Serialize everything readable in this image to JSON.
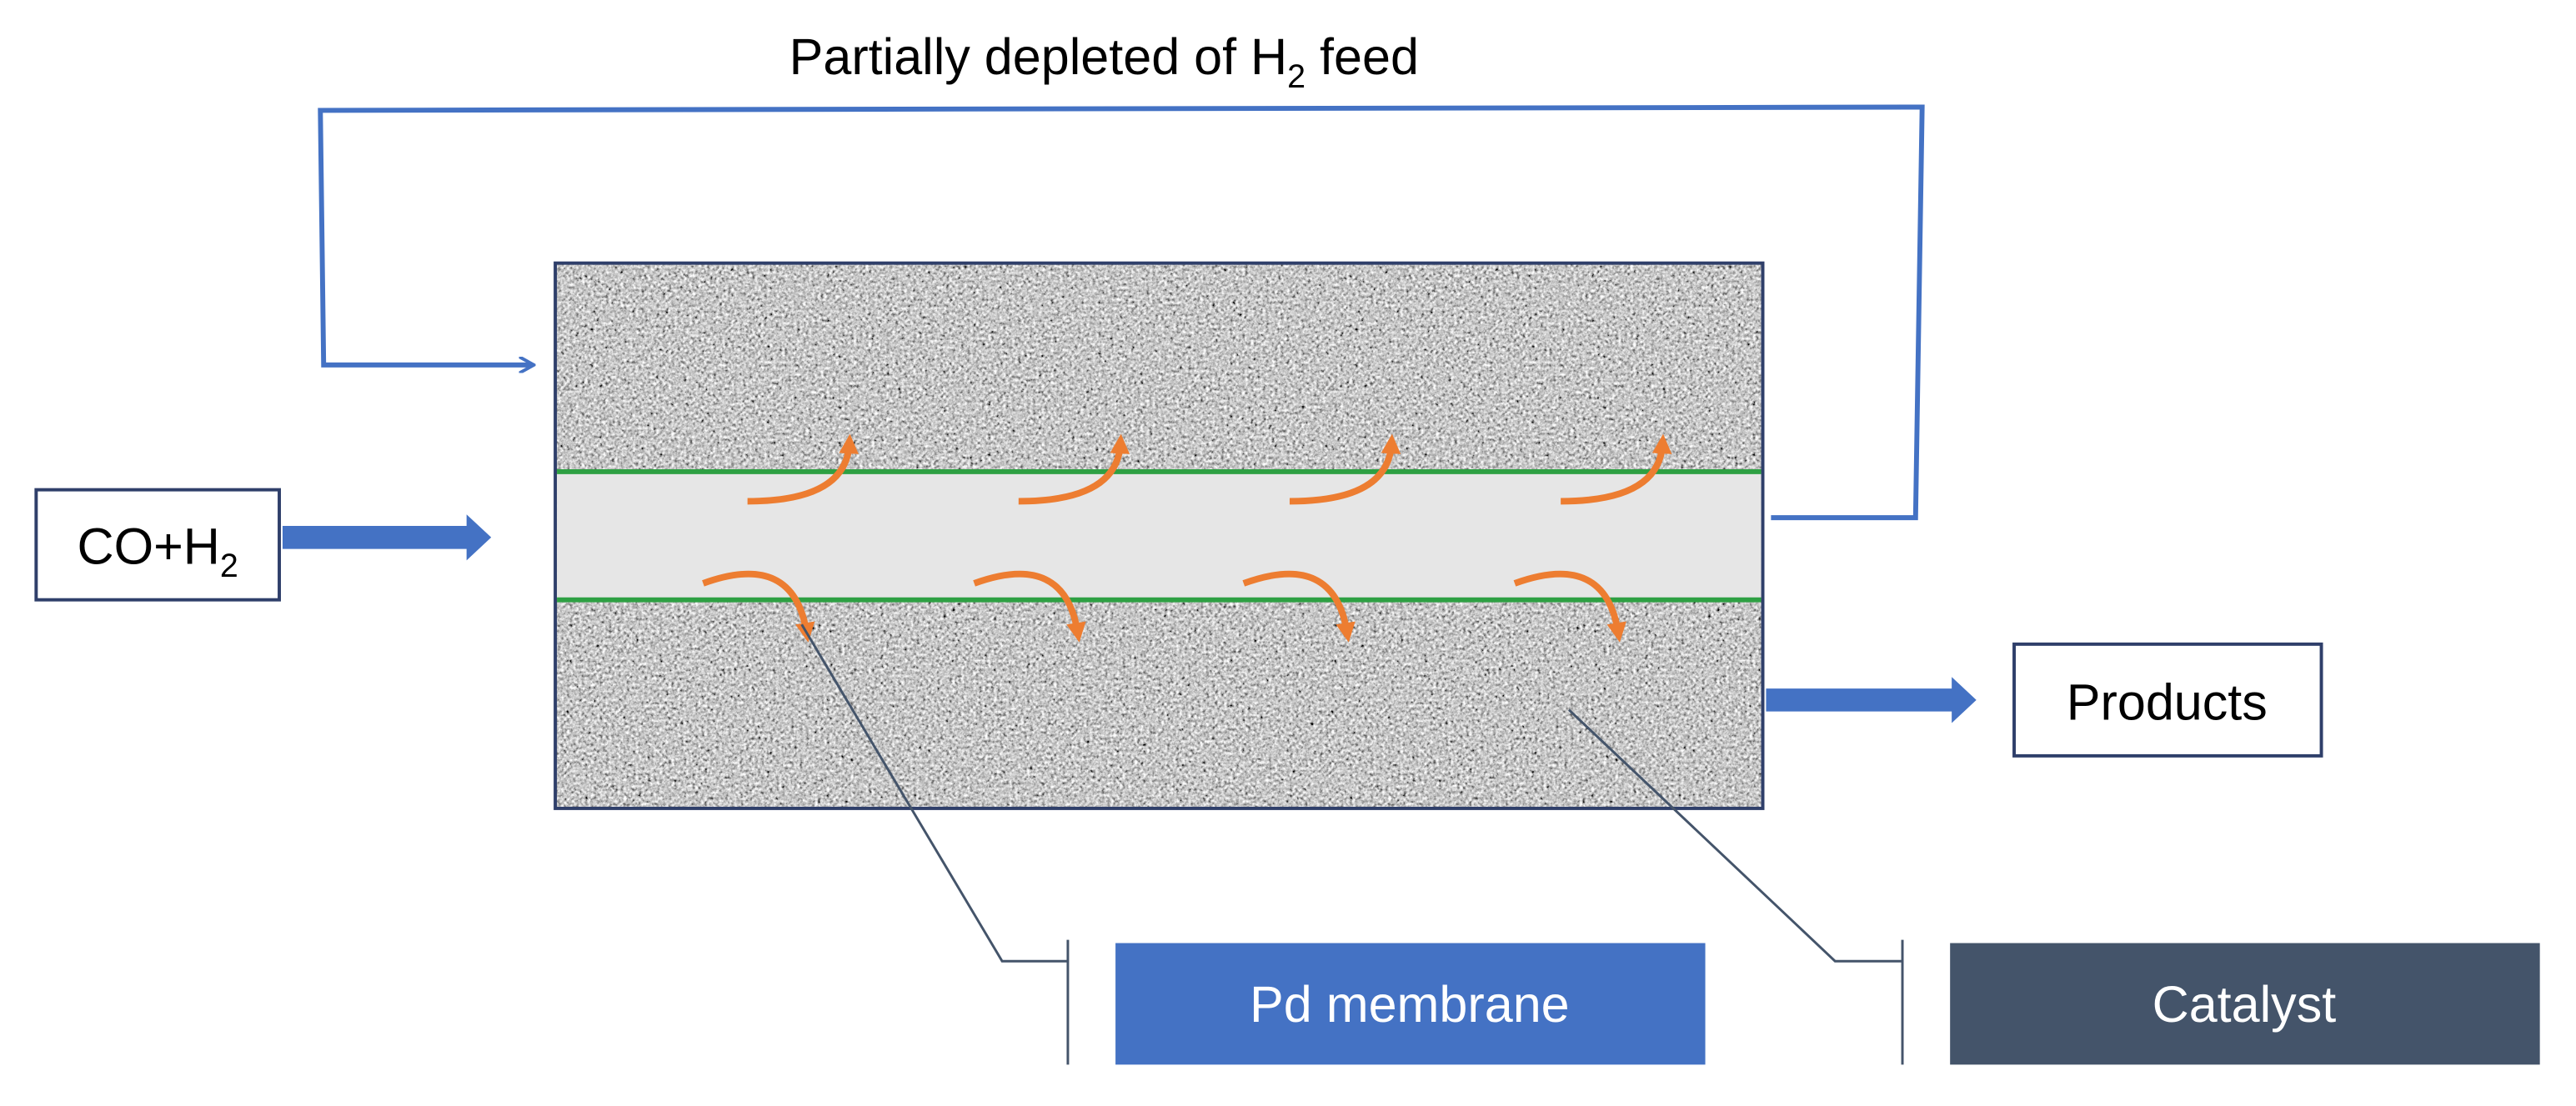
{
  "top_label": {
    "before": "Partially depleted of H",
    "sub": "2",
    "after": " feed"
  },
  "inlet": {
    "text": "CO+H",
    "sub": "2"
  },
  "outlet": "Products",
  "callouts": [
    "Pd membrane",
    "Catalyst"
  ]
}
